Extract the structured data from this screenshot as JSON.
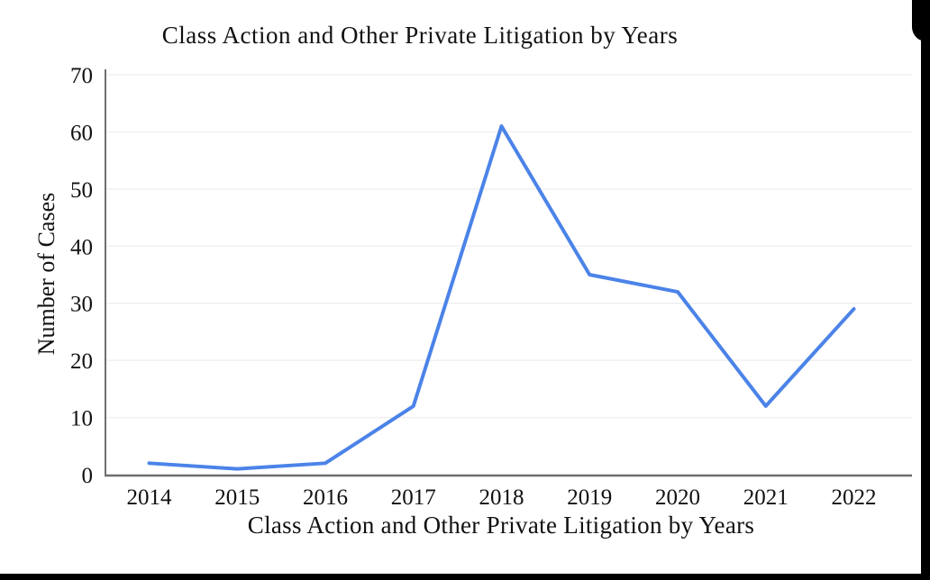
{
  "chart_data": {
    "type": "line",
    "title": "Class Action and Other Private Litigation by Years",
    "xlabel": "Class Action and Other Private Litigation by Years",
    "ylabel": "Number of Cases",
    "categories": [
      "2014",
      "2015",
      "2016",
      "2017",
      "2018",
      "2019",
      "2020",
      "2021",
      "2022"
    ],
    "values": [
      2,
      1,
      2,
      12,
      61,
      35,
      32,
      12,
      29
    ],
    "ylim": [
      0,
      70
    ],
    "ytick_step": 10,
    "grid": true,
    "legend_position": "none",
    "line_color": "#4b83e8",
    "axis_color": "#6e6e6e",
    "grid_color": "#f0f0f0",
    "frame_color": "#000000"
  }
}
